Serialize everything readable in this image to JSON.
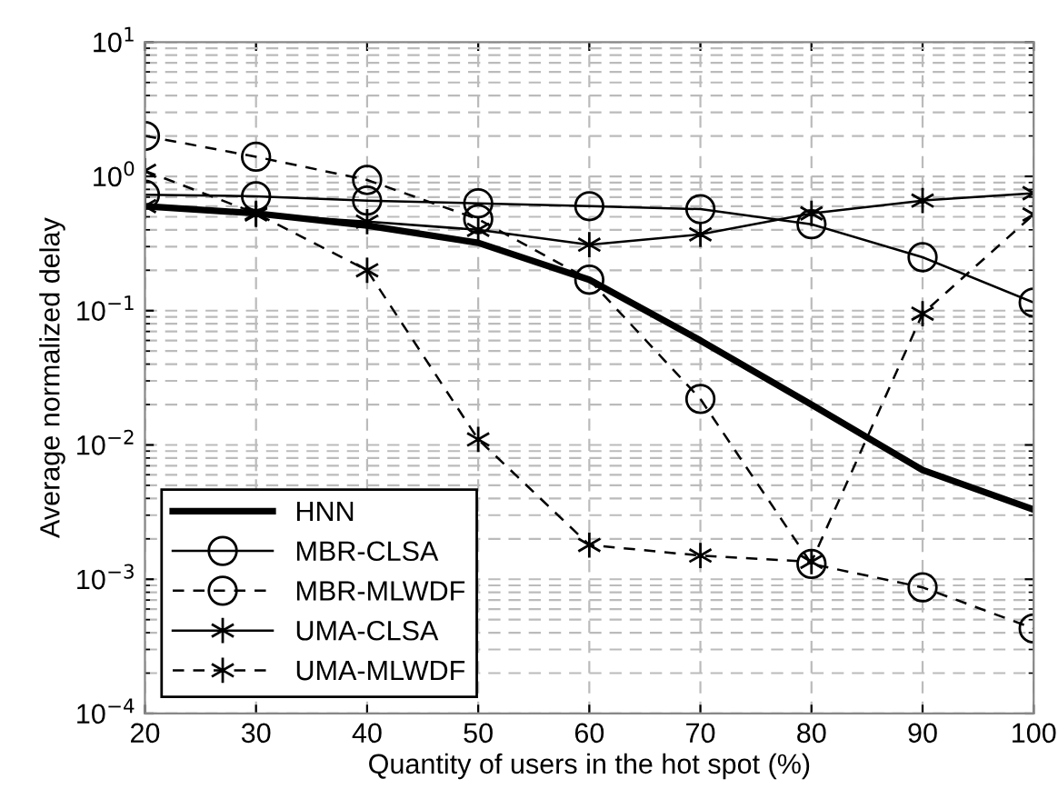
{
  "chart_data": {
    "type": "line",
    "xlabel": "Quantity of users in the hot spot (%)",
    "ylabel": "Average normalized delay",
    "x": [
      20,
      30,
      40,
      50,
      60,
      70,
      80,
      90,
      100
    ],
    "series": [
      {
        "name": "HNN",
        "color": "#000000",
        "marker": "none",
        "line_style": "solid",
        "values": [
          0.6,
          0.53,
          0.43,
          0.32,
          0.17,
          0.06,
          0.02,
          0.0065,
          0.0033
        ]
      },
      {
        "name": "MBR-CLSA",
        "color": "#000000",
        "marker": "circle",
        "line_style": "solid",
        "values": [
          0.73,
          0.71,
          0.66,
          0.63,
          0.6,
          0.57,
          0.44,
          0.25,
          0.115
        ]
      },
      {
        "name": "MBR-MLWDF",
        "color": "#000000",
        "marker": "circle",
        "line_style": "dashed",
        "values": [
          2.0,
          1.4,
          0.94,
          0.48,
          0.17,
          0.022,
          0.0013,
          0.00087,
          0.00043
        ]
      },
      {
        "name": "UMA-CLSA",
        "color": "#000000",
        "marker": "cross",
        "line_style": "solid",
        "values": [
          0.6,
          0.52,
          0.46,
          0.4,
          0.31,
          0.37,
          0.53,
          0.66,
          0.75
        ]
      },
      {
        "name": "UMA-MLWDF",
        "color": "#000000",
        "marker": "cross",
        "line_style": "dashed",
        "values": [
          1.1,
          0.53,
          0.2,
          0.011,
          0.0018,
          0.0015,
          0.00135,
          0.095,
          0.52
        ]
      }
    ],
    "log": "y",
    "xlim": [
      20,
      100
    ],
    "xticks": [
      20,
      30,
      40,
      50,
      60,
      70,
      80,
      90,
      100
    ],
    "ylim": [
      0.0001,
      10
    ],
    "yticks": [
      {
        "value": 0.0001,
        "label": "10$^{−4}$"
      },
      {
        "value": 0.001,
        "label": "10$^{−3}$"
      },
      {
        "value": 0.01,
        "label": "10$^{−2}$"
      },
      {
        "value": 0.1,
        "label": "10$^{−1}$"
      },
      {
        "value": 1,
        "label": "10$^{0}$"
      },
      {
        "value": 10,
        "label": "10$^{1}$"
      }
    ],
    "grid": true,
    "legend": "bottom left"
  }
}
